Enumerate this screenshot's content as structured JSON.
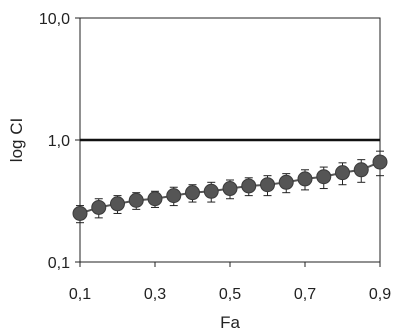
{
  "chart_data": {
    "type": "line",
    "xlabel": "Fa",
    "ylabel": "log CI",
    "xlim": [
      0.1,
      0.9
    ],
    "ylim": [
      0.1,
      10.0
    ],
    "y_scale": "log",
    "x_ticks": [
      "0,1",
      "0,3",
      "0,5",
      "0,7",
      "0,9"
    ],
    "x_tick_values": [
      0.1,
      0.3,
      0.5,
      0.7,
      0.9
    ],
    "y_ticks": [
      "0,1",
      "1,0",
      "10,0"
    ],
    "y_tick_values": [
      0.1,
      1.0,
      10.0
    ],
    "reference_line": 1.0,
    "grid": false,
    "legend": "none",
    "series": [
      {
        "x": [
          0.1,
          0.15,
          0.2,
          0.25,
          0.3,
          0.35,
          0.4,
          0.45,
          0.5,
          0.55,
          0.6,
          0.65,
          0.7,
          0.75,
          0.8,
          0.85,
          0.9
        ],
        "y": [
          0.25,
          0.28,
          0.3,
          0.32,
          0.33,
          0.35,
          0.37,
          0.38,
          0.4,
          0.42,
          0.43,
          0.45,
          0.48,
          0.5,
          0.54,
          0.57,
          0.66
        ],
        "err": [
          0.04,
          0.05,
          0.05,
          0.05,
          0.05,
          0.06,
          0.06,
          0.07,
          0.07,
          0.07,
          0.08,
          0.08,
          0.09,
          0.1,
          0.11,
          0.12,
          0.15
        ]
      }
    ],
    "colors": {
      "marker": "#555555",
      "marker_edge": "#3a3a3a",
      "reference": "#111111",
      "axis": "#222222",
      "errorbar": "#222222"
    }
  }
}
